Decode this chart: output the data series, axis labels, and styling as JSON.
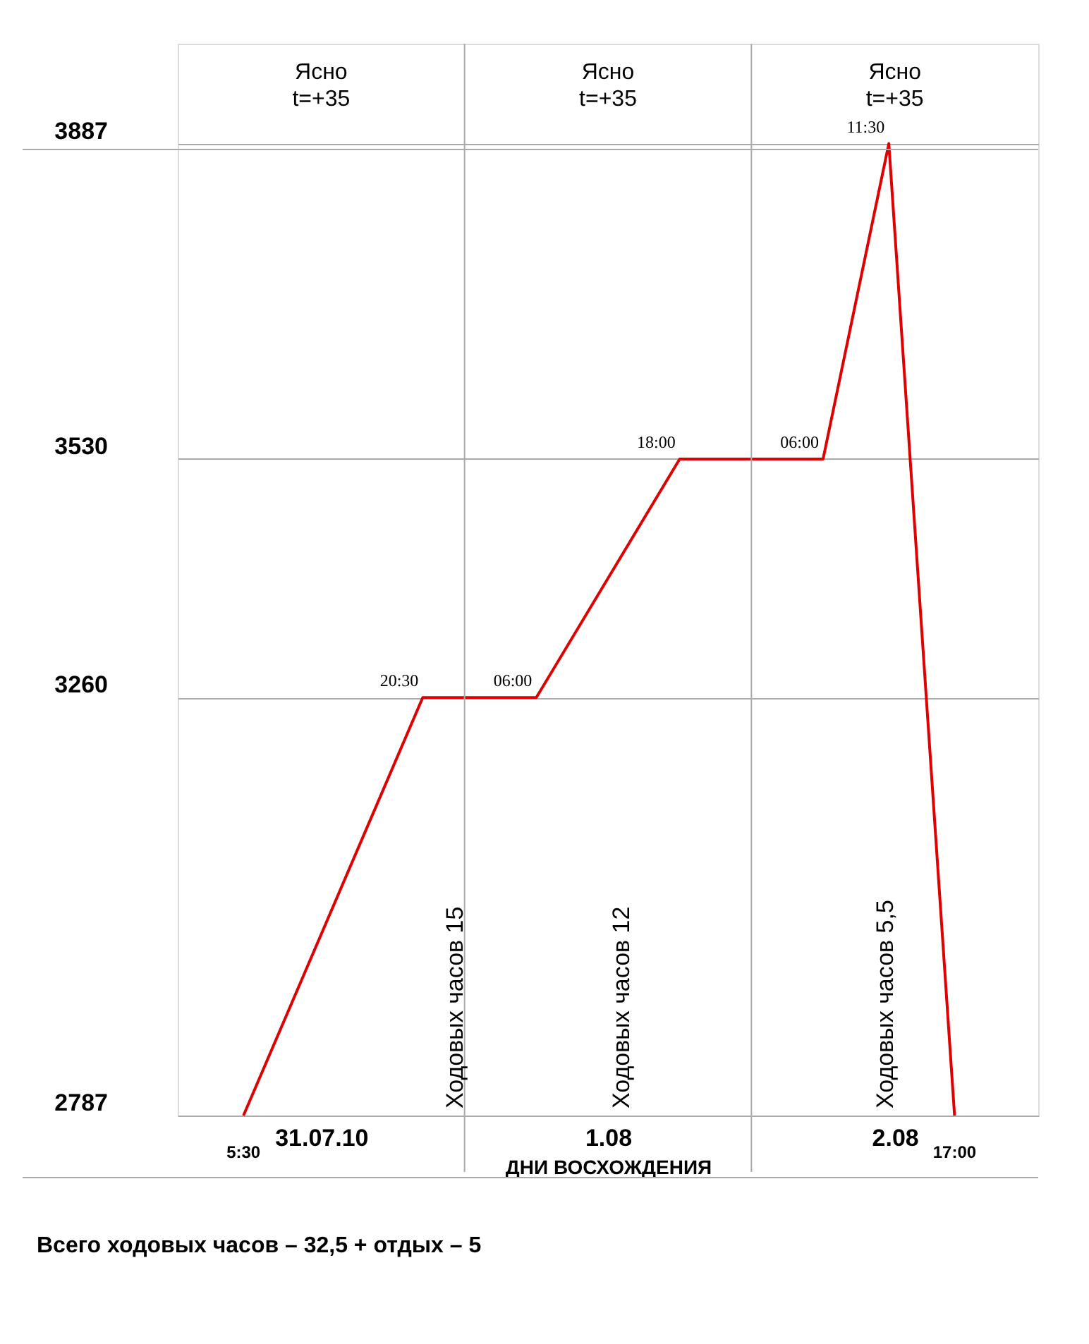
{
  "chart_data": {
    "type": "line",
    "xlabel": "ДНИ ВОСХОЖДЕНИЯ",
    "x": [
      "2010-07-31T05:30",
      "2010-07-31T20:30",
      "2010-08-01T06:00",
      "2010-08-01T18:00",
      "2010-08-02T06:00",
      "2010-08-02T11:30",
      "2010-08-02T17:00"
    ],
    "series": [
      {
        "color": "#e00000",
        "values": [
          2787,
          3260,
          3260,
          3530,
          3530,
          3887,
          2787
        ]
      }
    ],
    "xlim": [
      "2010-07-31T00:00",
      "2010-08-03T00:00"
    ],
    "xticks": [
      {
        "value": "2010-07-31T12:00",
        "label": "31.07.10"
      },
      {
        "value": "2010-08-01T12:00",
        "label": "1.08"
      },
      {
        "value": "2010-08-02T12:00",
        "label": "2.08"
      }
    ],
    "ylim": [
      2787,
      4000
    ],
    "yticks": [
      2787,
      3260,
      3530,
      3887
    ],
    "grid": "y",
    "marker": "none",
    "line_style": "solid",
    "ref_lines": [
      {
        "axis": "x",
        "value": "2010-08-01T00:00",
        "color": "#aaaaaa"
      },
      {
        "axis": "x",
        "value": "2010-08-02T00:00",
        "color": "#aaaaaa"
      }
    ],
    "annotations": [
      {
        "text": "5:30",
        "x": "2010-07-31T05:30",
        "y": 2787
      },
      {
        "text": "20:30",
        "x": "2010-07-31T20:30",
        "y": 3260
      },
      {
        "text": "06:00",
        "x": "2010-08-01T06:00",
        "y": 3260
      },
      {
        "text": "18:00",
        "x": "2010-08-01T18:00",
        "y": 3530
      },
      {
        "text": "06:00",
        "x": "2010-08-02T06:00",
        "y": 3530
      },
      {
        "text": "11:30",
        "x": "2010-08-02T11:30",
        "y": 3887
      },
      {
        "text": "17:00",
        "x": "2010-08-02T17:00",
        "y": 2787
      },
      "Ясно\nt=+35",
      "Ясно\nt=+35",
      "Ясно\nt=+35",
      "Ходовых часов 15",
      "Ходовых часов 12",
      "Ходовых часов 5,5",
      "Всего ходовых часов – 32,5 + отдых – 5"
    ]
  }
}
